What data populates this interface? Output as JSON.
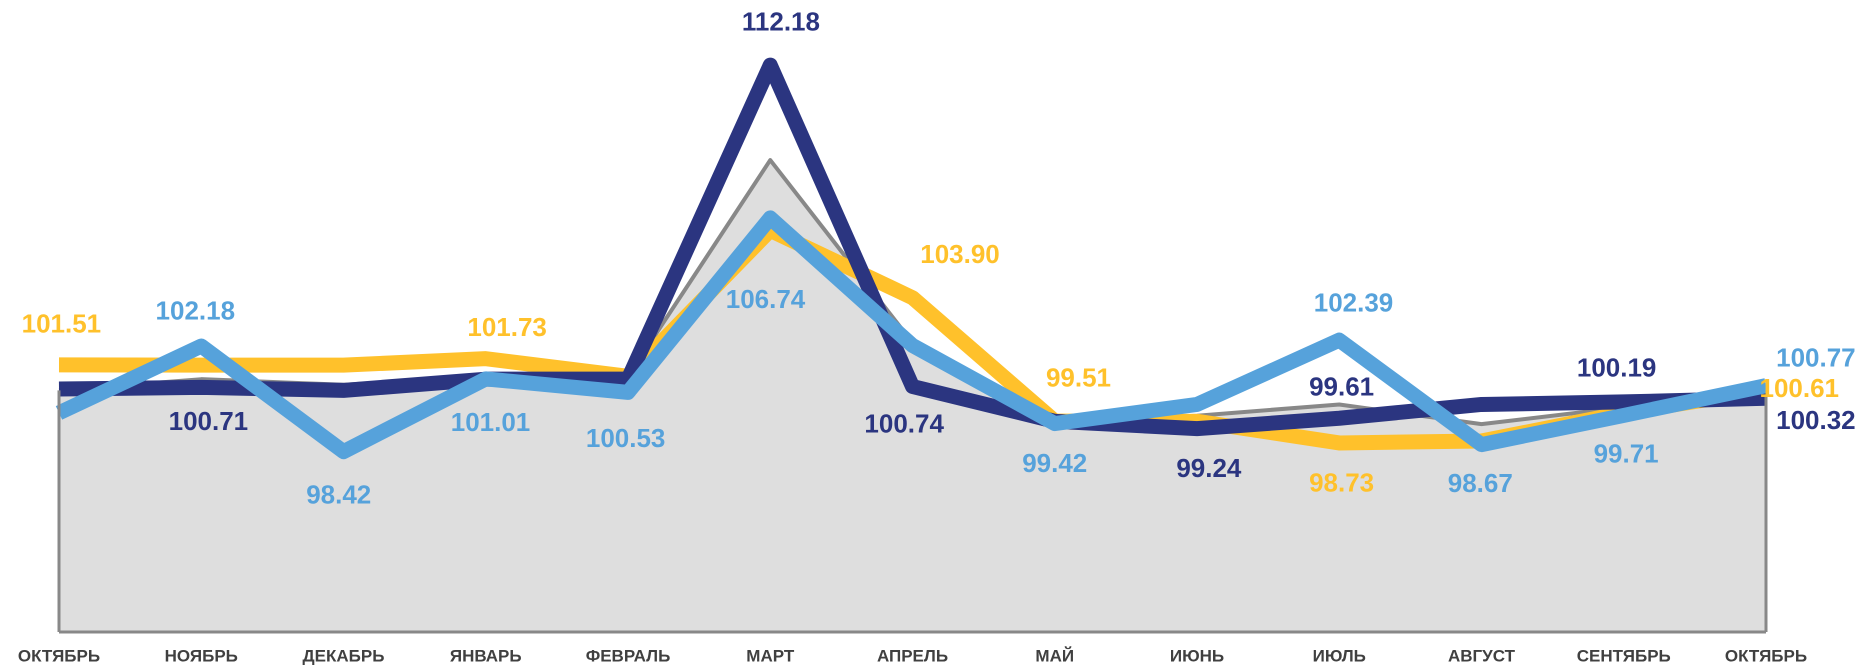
{
  "chart_data": {
    "type": "line",
    "categories": [
      "ОКТЯБРЬ",
      "НОЯБРЬ",
      "ДЕКАБРЬ",
      "ЯНВАРЬ",
      "ФЕВРАЛЬ",
      "МАРТ",
      "АПРЕЛЬ",
      "МАЙ",
      "ИЮНЬ",
      "ИЮЛЬ",
      "АВГУСТ",
      "СЕНТЯБРЬ",
      "ОКТЯБРЬ"
    ],
    "ylim": [
      92,
      114
    ],
    "series": [
      {
        "color": "#888888",
        "fill": "#dedede",
        "area": true,
        "values": [
          100.6,
          101.0,
          100.8,
          101.1,
          101.1,
          108.8,
          102.3,
          99.5,
          99.7,
          100.1,
          99.4,
          100.0,
          100.4
        ]
      },
      {
        "color": "#ffc12b",
        "values": [
          101.51,
          101.5,
          101.5,
          101.73,
          101.1,
          106.3,
          103.9,
          99.51,
          99.5,
          98.73,
          98.8,
          99.8,
          100.61
        ],
        "value_labels": [
          "101.51",
          null,
          null,
          "101.73",
          null,
          null,
          "103.90",
          "99.51",
          null,
          "98.73",
          null,
          null,
          "100.61"
        ]
      },
      {
        "color": "#2b3580",
        "values": [
          100.65,
          100.71,
          100.6,
          101.0,
          101.0,
          112.18,
          100.74,
          99.5,
          99.24,
          99.61,
          100.1,
          100.19,
          100.32
        ],
        "value_labels": [
          null,
          "100.71",
          null,
          null,
          null,
          "112.18",
          "100.74",
          null,
          "99.24",
          "99.61",
          null,
          "100.19",
          "100.32"
        ]
      },
      {
        "color": "#56a2db",
        "values": [
          99.8,
          102.18,
          98.42,
          101.01,
          100.53,
          106.74,
          102.2,
          99.42,
          100.1,
          102.39,
          98.67,
          99.71,
          100.77
        ],
        "value_labels": [
          null,
          "102.18",
          "98.42",
          "101.01",
          "100.53",
          "106.74",
          null,
          "99.42",
          null,
          "102.39",
          "98.67",
          "99.71",
          "100.77"
        ]
      }
    ]
  }
}
